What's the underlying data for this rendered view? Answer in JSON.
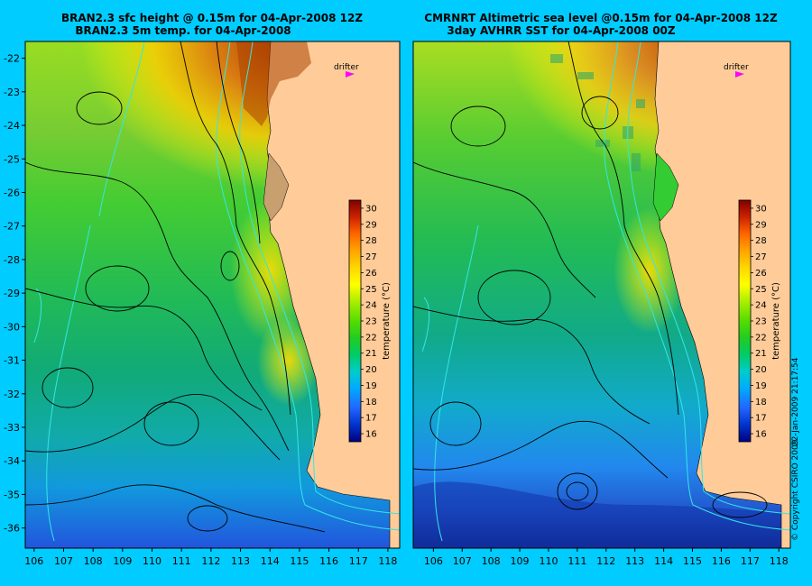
{
  "colors": {
    "background": "#00ccff",
    "land": "#ffcc99",
    "contour": "#000000",
    "bathymetry": "#33e6e6",
    "drifter": "#ff00ff"
  },
  "panels": [
    {
      "id": "left",
      "title_line1": "BRAN2.3 sfc height @ 0.15m for 04-Apr-2008 12Z",
      "title_line2": "BRAN2.3 5m temp. for 04-Apr-2008",
      "drifter_label": "drifter",
      "lon_range": [
        105.7,
        118.4
      ],
      "lat_range": [
        -36.6,
        -21.5
      ]
    },
    {
      "id": "right",
      "title_line1": "CMRNRT Altimetric sea level  @0.15m  for 04-Apr-2008 12Z",
      "title_line2": "3day AVHRR SST for 04-Apr-2008 00Z",
      "drifter_label": "drifter",
      "lon_range": [
        105.3,
        118.4
      ],
      "lat_range": [
        -36.6,
        -21.5
      ]
    }
  ],
  "axes": {
    "x_ticks": [
      "106",
      "107",
      "108",
      "109",
      "110",
      "111",
      "112",
      "113",
      "114",
      "115",
      "116",
      "117",
      "118"
    ],
    "y_ticks": [
      "-22",
      "-23",
      "-24",
      "-25",
      "-26",
      "-27",
      "-28",
      "-29",
      "-30",
      "-31",
      "-32",
      "-33",
      "-34",
      "-35",
      "-36"
    ]
  },
  "colorbar": {
    "label": "temperature (°C)",
    "ticks": [
      "30",
      "29",
      "28",
      "27",
      "26",
      "25",
      "24",
      "23",
      "22",
      "21",
      "20",
      "19",
      "18",
      "17",
      "16"
    ],
    "range": [
      15.5,
      30.5
    ],
    "stops": [
      "#800000",
      "#cc2200",
      "#ff6600",
      "#ffa500",
      "#ffd700",
      "#ffff00",
      "#aaee00",
      "#55dd00",
      "#22cc22",
      "#00cc66",
      "#00cccc",
      "#00aaff",
      "#2266ff",
      "#0033cc",
      "#000080"
    ]
  },
  "copyright": "© Copyright CSIRO 2009",
  "timestamp": "22-Jan-2009 21:17:54"
}
